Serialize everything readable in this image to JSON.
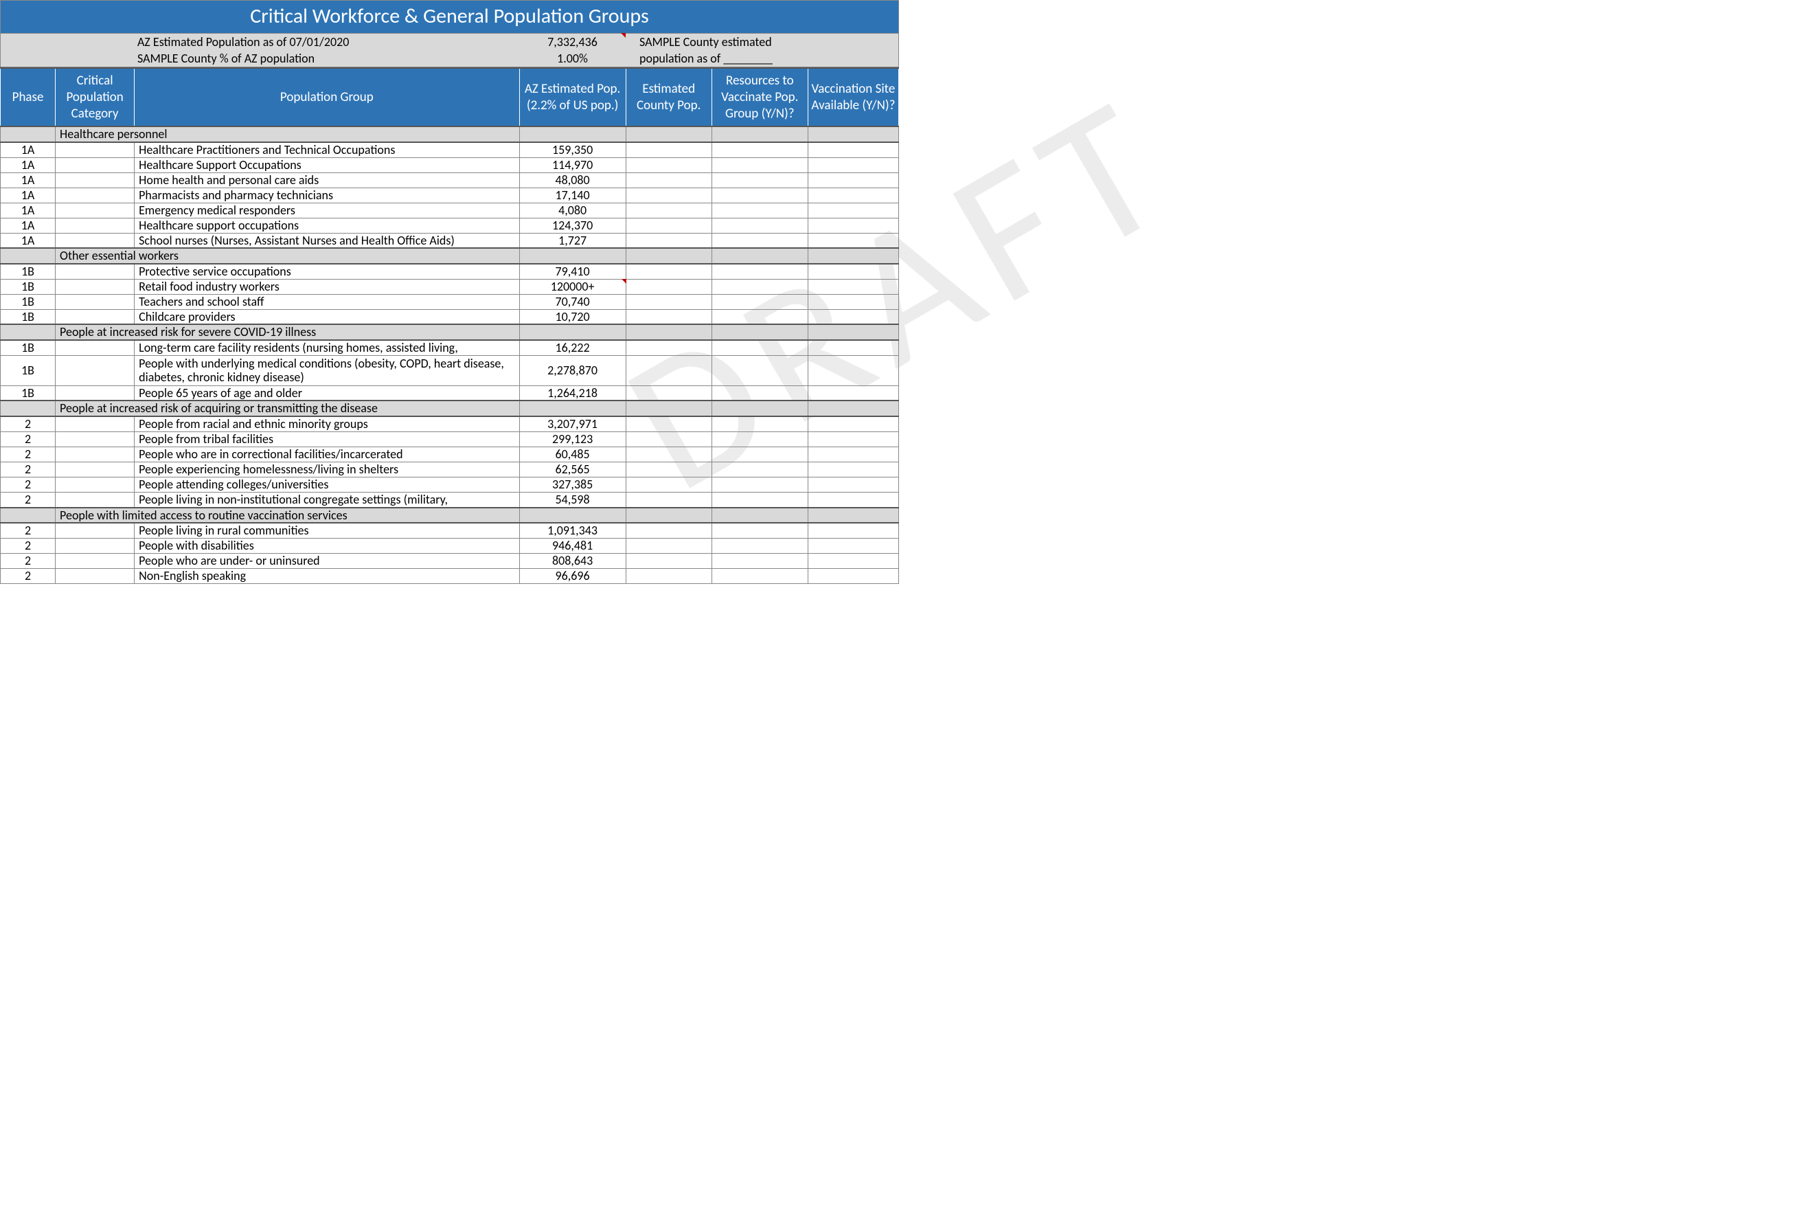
{
  "title": "Critical Workforce & General Population Groups",
  "info": {
    "row1_label": "AZ Estimated Population as of 07/01/2020",
    "row1_value": "7,332,436",
    "row1_right": "SAMPLE County estimated",
    "row2_label": "SAMPLE County % of AZ population",
    "row2_value": "1.00%",
    "row2_right": "population as of ________"
  },
  "headers": {
    "phase": "Phase",
    "category": "Critical Population Category",
    "group": "Population Group",
    "azpop": "AZ Estimated Pop. (2.2% of US pop.)",
    "ctypop": "Estimated County Pop.",
    "resources": "Resources to Vaccinate Pop. Group (Y/N)?",
    "site": "Vaccination Site Available (Y/N)?"
  },
  "sections": [
    {
      "label": "Healthcare personnel",
      "rows": [
        {
          "phase": "1A",
          "group": "Healthcare Practitioners and Technical Occupations",
          "az": "159,350",
          "note": false
        },
        {
          "phase": "1A",
          "group": "Healthcare Support Occupations",
          "az": "114,970",
          "note": false
        },
        {
          "phase": "1A",
          "group": "Home health and personal care aids",
          "az": "48,080",
          "note": false
        },
        {
          "phase": "1A",
          "group": "Pharmacists and pharmacy technicians",
          "az": "17,140",
          "note": false
        },
        {
          "phase": "1A",
          "group": "Emergency medical responders",
          "az": "4,080",
          "note": false
        },
        {
          "phase": "1A",
          "group": "Healthcare support occupations",
          "az": "124,370",
          "note": false
        },
        {
          "phase": "1A",
          "group": "School nurses (Nurses, Assistant Nurses and Health Office Aids)",
          "az": "1,727",
          "note": false
        }
      ]
    },
    {
      "label": "Other essential workers",
      "rows": [
        {
          "phase": "1B",
          "group": "Protective service occupations",
          "az": "79,410",
          "note": false
        },
        {
          "phase": "1B",
          "group": "Retail food industry workers",
          "az": "120000+",
          "note": true
        },
        {
          "phase": "1B",
          "group": "Teachers and school staff",
          "az": "70,740",
          "note": false
        },
        {
          "phase": "1B",
          "group": "Childcare providers",
          "az": "10,720",
          "note": false
        }
      ]
    },
    {
      "label": "People at increased risk for severe COVID-19 illness",
      "rows": [
        {
          "phase": "1B",
          "group": "Long-term care facility residents (nursing homes, assisted living,",
          "az": "16,222",
          "note": false
        },
        {
          "phase": "1B",
          "group": "People with underlying medical conditions (obesity, COPD, heart disease, diabetes, chronic kidney disease)",
          "az": "2,278,870",
          "note": false,
          "tall": true
        },
        {
          "phase": "1B",
          "group": "People 65 years of age and older",
          "az": "1,264,218",
          "note": false
        }
      ]
    },
    {
      "label": "People at increased risk of acquiring or transmitting the disease",
      "rows": [
        {
          "phase": "2",
          "group": "People from racial and ethnic minority groups",
          "az": "3,207,971",
          "note": false
        },
        {
          "phase": "2",
          "group": "People from tribal facilities",
          "az": "299,123",
          "note": false
        },
        {
          "phase": "2",
          "group": "People who are in correctional facilities/incarcerated",
          "az": "60,485",
          "note": false
        },
        {
          "phase": "2",
          "group": "People experiencing homelessness/living in shelters",
          "az": "62,565",
          "note": false
        },
        {
          "phase": "2",
          "group": "People attending colleges/universities",
          "az": "327,385",
          "note": false
        },
        {
          "phase": "2",
          "group": "People living in non-institutional congregate settings (military,",
          "az": "54,598",
          "note": false
        }
      ]
    },
    {
      "label": "People with limited access to routine vaccination services",
      "rows": [
        {
          "phase": "2",
          "group": "People living in rural communities",
          "az": "1,091,343",
          "note": false
        },
        {
          "phase": "2",
          "group": "People with disabilities",
          "az": "946,481",
          "note": false
        },
        {
          "phase": "2",
          "group": "People who are under- or uninsured",
          "az": "808,643",
          "note": false
        },
        {
          "phase": "2",
          "group": "Non-English speaking",
          "az": "96,696",
          "note": false
        }
      ]
    }
  ],
  "colors": {
    "header_bg": "#2e74b5",
    "header_fg": "#ffffff",
    "band_bg": "#d9d9d9",
    "border": "#888888",
    "note_marker": "#c00000"
  }
}
